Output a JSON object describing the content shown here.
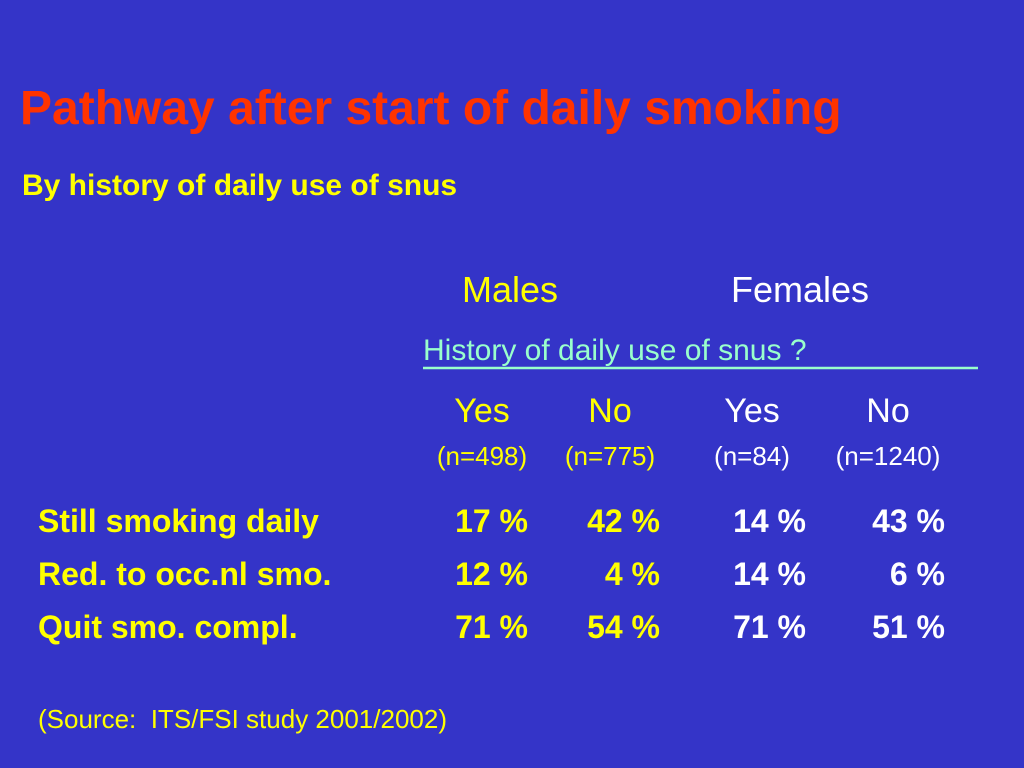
{
  "header": {
    "title": "Pathway after start of daily smoking",
    "subtitle": "By history of daily use of snus"
  },
  "table": {
    "groups": [
      "Males",
      "Females"
    ],
    "question": "History of daily use of snus ?",
    "columns": [
      {
        "label": "Yes",
        "n": "(n=498)"
      },
      {
        "label": "No",
        "n": "(n=775)"
      },
      {
        "label": "Yes",
        "n": "(n=84)"
      },
      {
        "label": "No",
        "n": "(n=1240)"
      }
    ],
    "rows": [
      {
        "label": "Still smoking daily",
        "cells": [
          "17 %",
          "42 %",
          "14 %",
          "43 %"
        ]
      },
      {
        "label": "Red. to occ.nl smo.",
        "cells": [
          "12 %",
          "4 %",
          "14 %",
          "6 %"
        ]
      },
      {
        "label": "Quit smo. compl.",
        "cells": [
          "71 %",
          "54 %",
          "71 %",
          "51 %"
        ]
      }
    ]
  },
  "footer": {
    "source": "(Source:  ITS/FSI study 2001/2002)"
  }
}
